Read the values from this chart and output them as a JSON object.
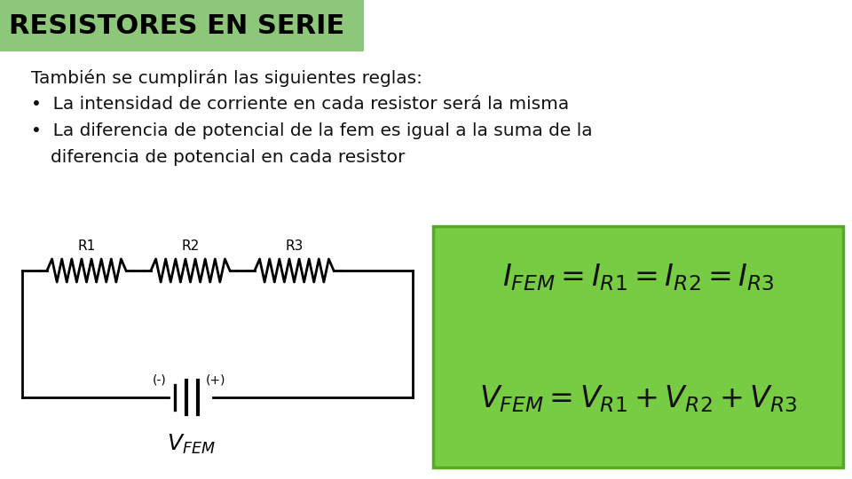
{
  "title": "RESISTORES EN SERIE",
  "title_bg": "#8dc87a",
  "title_color": "#000000",
  "body_bg": "#ffffff",
  "text_line1": "También se cumplirán las siguientes reglas:",
  "bullet1": "La intensidad de corriente en cada resistor será la misma",
  "bullet2a": "La diferencia de potencial de la fem es igual a la suma de la",
  "bullet2b": "diferencia de potencial en cada resistor",
  "formula_bg": "#77cc44",
  "formula_border": "#55aa22",
  "eq1": "$I_{FEM} = I_{R1} = I_{R2} = I_{R3}$",
  "eq2": "$V_{FEM} = V_{R1}+V_{R2}+V_{R3}$",
  "font_size_title": 22,
  "font_size_body": 14.5,
  "font_size_formula": 24
}
